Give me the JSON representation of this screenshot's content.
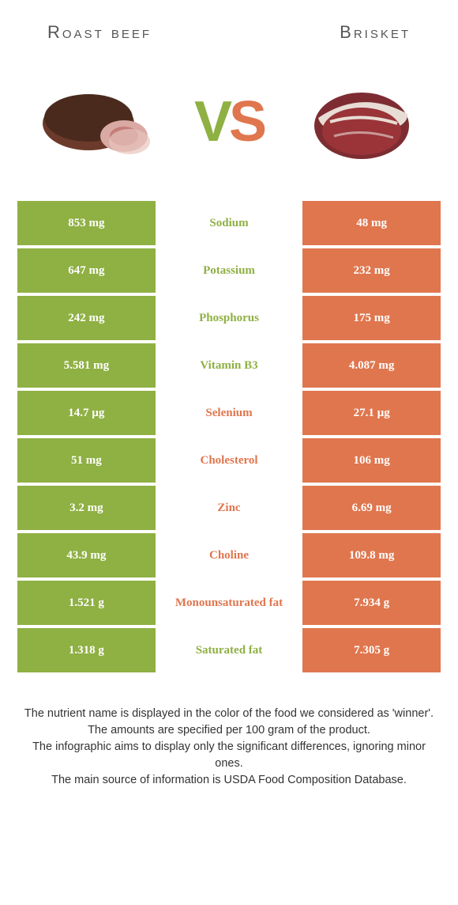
{
  "header": {
    "left": "Roast beef",
    "right": "Brisket"
  },
  "vs": {
    "v": "V",
    "s": "S"
  },
  "colors": {
    "green": "#8fb043",
    "orange": "#e0764e",
    "vs_v": "#8fb043",
    "vs_s": "#e0764e"
  },
  "rows": [
    {
      "left": "853 mg",
      "label": "Sodium",
      "right": "48 mg",
      "winner": "left"
    },
    {
      "left": "647 mg",
      "label": "Potassium",
      "right": "232 mg",
      "winner": "left"
    },
    {
      "left": "242 mg",
      "label": "Phosphorus",
      "right": "175 mg",
      "winner": "left"
    },
    {
      "left": "5.581 mg",
      "label": "Vitamin B3",
      "right": "4.087 mg",
      "winner": "left"
    },
    {
      "left": "14.7 µg",
      "label": "Selenium",
      "right": "27.1 µg",
      "winner": "right"
    },
    {
      "left": "51 mg",
      "label": "Cholesterol",
      "right": "106 mg",
      "winner": "right"
    },
    {
      "left": "3.2 mg",
      "label": "Zinc",
      "right": "6.69 mg",
      "winner": "right"
    },
    {
      "left": "43.9 mg",
      "label": "Choline",
      "right": "109.8 mg",
      "winner": "right"
    },
    {
      "left": "1.521 g",
      "label": "Monounsaturated fat",
      "right": "7.934 g",
      "winner": "right"
    },
    {
      "left": "1.318 g",
      "label": "Saturated fat",
      "right": "7.305 g",
      "winner": "left"
    }
  ],
  "footer": {
    "l1": "The nutrient name is displayed in the color of the food we considered as 'winner'.",
    "l2": "The amounts are specified per 100 gram of the product.",
    "l3": "The infographic aims to display only the significant differences, ignoring minor ones.",
    "l4": "The main source of information is USDA Food Composition Database."
  }
}
